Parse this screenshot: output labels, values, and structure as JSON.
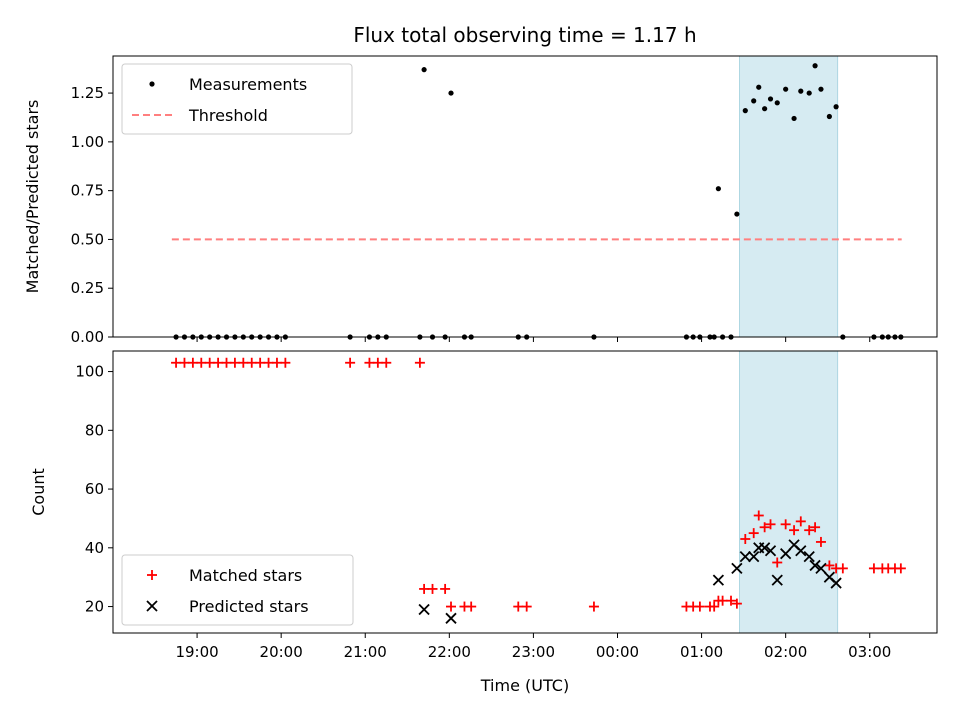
{
  "chart_data": [
    {
      "type": "scatter",
      "title": "Flux total observing time = 1.17 h",
      "xlabel": "",
      "ylabel": "Matched/Predicted stars",
      "ylim": [
        0,
        1.44
      ],
      "yticks": [
        0.0,
        0.25,
        0.5,
        0.75,
        1.0,
        1.25
      ],
      "ytick_labels": [
        "0.00",
        "0.25",
        "0.50",
        "0.75",
        "1.00",
        "1.25"
      ],
      "highlight_span": [
        25.45,
        26.62
      ],
      "legend_placement": "upper-left",
      "series": [
        {
          "name": "Measurements",
          "marker": "dot",
          "color": "#000000",
          "points": [
            [
              18.75,
              0
            ],
            [
              18.85,
              0
            ],
            [
              18.95,
              0
            ],
            [
              19.05,
              0
            ],
            [
              19.15,
              0
            ],
            [
              19.25,
              0
            ],
            [
              19.35,
              0
            ],
            [
              19.45,
              0
            ],
            [
              19.55,
              0
            ],
            [
              19.65,
              0
            ],
            [
              19.75,
              0
            ],
            [
              19.85,
              0
            ],
            [
              19.95,
              0
            ],
            [
              20.05,
              0
            ],
            [
              20.82,
              0
            ],
            [
              21.05,
              0
            ],
            [
              21.15,
              0
            ],
            [
              21.25,
              0
            ],
            [
              21.65,
              0
            ],
            [
              21.7,
              1.37
            ],
            [
              21.8,
              0
            ],
            [
              21.95,
              0
            ],
            [
              22.02,
              1.25
            ],
            [
              22.18,
              0
            ],
            [
              22.26,
              0
            ],
            [
              22.82,
              0
            ],
            [
              22.92,
              0
            ],
            [
              23.72,
              0
            ],
            [
              24.82,
              0
            ],
            [
              24.9,
              0
            ],
            [
              24.98,
              0
            ],
            [
              25.1,
              0
            ],
            [
              25.15,
              0
            ],
            [
              25.2,
              0.76
            ],
            [
              25.25,
              0
            ],
            [
              25.35,
              0
            ],
            [
              25.42,
              0.63
            ],
            [
              25.52,
              1.16
            ],
            [
              25.62,
              1.21
            ],
            [
              25.68,
              1.28
            ],
            [
              25.75,
              1.17
            ],
            [
              25.82,
              1.22
            ],
            [
              25.9,
              1.2
            ],
            [
              26.0,
              1.27
            ],
            [
              26.1,
              1.12
            ],
            [
              26.18,
              1.26
            ],
            [
              26.28,
              1.25
            ],
            [
              26.35,
              1.39
            ],
            [
              26.42,
              1.27
            ],
            [
              26.52,
              1.13
            ],
            [
              26.6,
              1.18
            ],
            [
              26.68,
              0
            ],
            [
              27.05,
              0
            ],
            [
              27.15,
              0
            ],
            [
              27.22,
              0
            ],
            [
              27.3,
              0
            ],
            [
              27.37,
              0
            ]
          ]
        },
        {
          "name": "Threshold",
          "marker": "dashed-line",
          "color": "#ff7f7f",
          "points": [
            [
              18.7,
              0.5
            ],
            [
              27.38,
              0.5
            ]
          ]
        }
      ]
    },
    {
      "type": "scatter",
      "title": "",
      "xlabel": "Time (UTC)",
      "ylabel": "Count",
      "ylim": [
        11,
        107
      ],
      "yticks": [
        20,
        40,
        60,
        80,
        100
      ],
      "ytick_labels": [
        "20",
        "40",
        "60",
        "80",
        "100"
      ],
      "xlim": [
        18.0,
        27.8
      ],
      "xticks": [
        19,
        20,
        21,
        22,
        23,
        24,
        25,
        26,
        27
      ],
      "xtick_labels": [
        "19:00",
        "20:00",
        "21:00",
        "22:00",
        "23:00",
        "00:00",
        "01:00",
        "02:00",
        "03:00"
      ],
      "highlight_span": [
        25.45,
        26.62
      ],
      "legend_placement": "lower-left",
      "series": [
        {
          "name": "Matched stars",
          "marker": "plus",
          "color": "#ff0000",
          "points": [
            [
              18.75,
              103
            ],
            [
              18.85,
              103
            ],
            [
              18.95,
              103
            ],
            [
              19.05,
              103
            ],
            [
              19.15,
              103
            ],
            [
              19.25,
              103
            ],
            [
              19.35,
              103
            ],
            [
              19.45,
              103
            ],
            [
              19.55,
              103
            ],
            [
              19.65,
              103
            ],
            [
              19.75,
              103
            ],
            [
              19.85,
              103
            ],
            [
              19.95,
              103
            ],
            [
              20.05,
              103
            ],
            [
              20.82,
              103
            ],
            [
              21.05,
              103
            ],
            [
              21.15,
              103
            ],
            [
              21.25,
              103
            ],
            [
              21.65,
              103
            ],
            [
              21.7,
              26
            ],
            [
              21.8,
              26
            ],
            [
              21.95,
              26
            ],
            [
              22.02,
              20
            ],
            [
              22.18,
              20
            ],
            [
              22.26,
              20
            ],
            [
              22.82,
              20
            ],
            [
              22.92,
              20
            ],
            [
              23.72,
              20
            ],
            [
              24.82,
              20
            ],
            [
              24.9,
              20
            ],
            [
              24.98,
              20
            ],
            [
              25.1,
              20
            ],
            [
              25.15,
              20
            ],
            [
              25.2,
              22
            ],
            [
              25.25,
              22
            ],
            [
              25.35,
              22
            ],
            [
              25.42,
              21
            ],
            [
              25.52,
              43
            ],
            [
              25.62,
              45
            ],
            [
              25.68,
              51
            ],
            [
              25.75,
              47
            ],
            [
              25.82,
              48
            ],
            [
              25.9,
              35
            ],
            [
              26.0,
              48
            ],
            [
              26.1,
              46
            ],
            [
              26.18,
              49
            ],
            [
              26.28,
              46
            ],
            [
              26.35,
              47
            ],
            [
              26.42,
              42
            ],
            [
              26.52,
              34
            ],
            [
              26.6,
              33
            ],
            [
              26.68,
              33
            ],
            [
              27.05,
              33
            ],
            [
              27.15,
              33
            ],
            [
              27.22,
              33
            ],
            [
              27.3,
              33
            ],
            [
              27.37,
              33
            ]
          ]
        },
        {
          "name": "Predicted stars",
          "marker": "x",
          "color": "#000000",
          "points": [
            [
              21.7,
              19
            ],
            [
              22.02,
              16
            ],
            [
              25.2,
              29
            ],
            [
              25.42,
              33
            ],
            [
              25.52,
              37
            ],
            [
              25.62,
              37
            ],
            [
              25.68,
              40
            ],
            [
              25.75,
              40
            ],
            [
              25.82,
              39
            ],
            [
              25.9,
              29
            ],
            [
              26.0,
              38
            ],
            [
              26.1,
              41
            ],
            [
              26.18,
              39
            ],
            [
              26.28,
              37
            ],
            [
              26.35,
              34
            ],
            [
              26.42,
              33
            ],
            [
              26.52,
              30
            ],
            [
              26.6,
              28
            ]
          ]
        }
      ]
    }
  ]
}
